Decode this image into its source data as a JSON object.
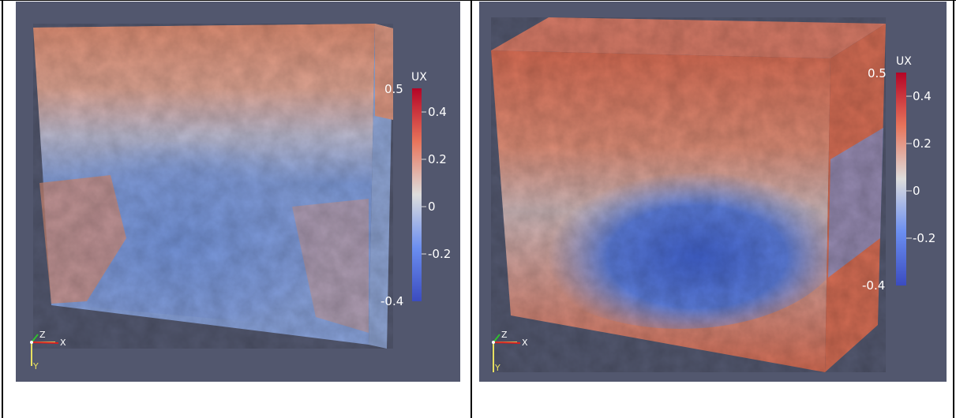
{
  "panels": [
    {
      "colorbar": {
        "title": "UX",
        "range_max_label": "0.5",
        "range_min_label": "-0.4",
        "ticks": [
          "0.4",
          "0.2",
          "0",
          "-0.2"
        ],
        "colors": [
          "#b40426",
          "#e7745b",
          "#dddddd",
          "#6b8ef0",
          "#3b4cc0"
        ]
      },
      "axes": {
        "x": "X",
        "y": "Y",
        "z": "Z"
      }
    },
    {
      "colorbar": {
        "title": "UX",
        "range_max_label": "0.5",
        "range_min_label": "-0.4",
        "ticks": [
          "0.4",
          "0.2",
          "0",
          "-0.2"
        ],
        "colors": [
          "#b40426",
          "#e7745b",
          "#dddddd",
          "#6b8ef0",
          "#3b4cc0"
        ]
      },
      "axes": {
        "x": "X",
        "y": "Y",
        "z": "Z"
      }
    }
  ],
  "background_color": "#52576e"
}
